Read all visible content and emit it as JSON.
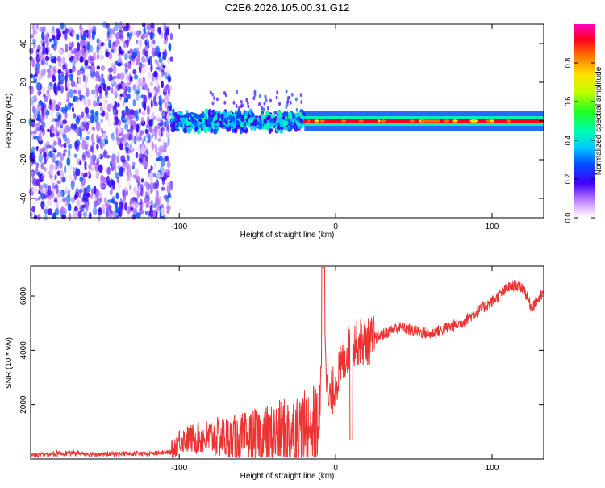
{
  "title": "C2E6.2026.105.00.31.G12",
  "chart_data": [
    {
      "type": "heatmap",
      "xlabel": "Height of straight line (km)",
      "ylabel": "Frequency (Hz)",
      "xlim": [
        -195,
        133
      ],
      "ylim": [
        -50,
        50
      ],
      "xticks": [
        "-100",
        "0",
        "100"
      ],
      "yticks": [
        "-40",
        "-20",
        "0",
        "20",
        "40"
      ],
      "colorbar": {
        "label": "Normalized spectral amplitude",
        "ticks": [
          "0.0",
          "0.2",
          "0.4",
          "0.6",
          "0.8"
        ],
        "range": [
          0,
          1
        ]
      },
      "regions": [
        {
          "x": [
            -195,
            -105
          ],
          "freq": [
            -50,
            50
          ],
          "amplitude": [
            0.0,
            0.1
          ]
        },
        {
          "x": [
            -105,
            -20
          ],
          "freq": [
            -8,
            8
          ],
          "amplitude": [
            0.05,
            0.4
          ]
        },
        {
          "x": [
            -20,
            133
          ],
          "freq": [
            -2,
            2
          ],
          "amplitude": [
            0.6,
            1.0
          ]
        }
      ]
    },
    {
      "type": "line",
      "xlabel": "Height of straight line (km)",
      "ylabel": "SNR (10 * v/v)",
      "xlim": [
        -195,
        133
      ],
      "ylim": [
        0,
        7100
      ],
      "xticks": [
        "-100",
        "0",
        "100"
      ],
      "yticks": [
        "2000",
        "4000",
        "6000"
      ],
      "color": "#ee3333",
      "x": [
        -195,
        -170,
        -150,
        -120,
        -105,
        -100,
        -80,
        -60,
        -40,
        -20,
        -10,
        -8,
        -5,
        0,
        5,
        10,
        20,
        40,
        60,
        70,
        80,
        100,
        110,
        115,
        120,
        125,
        133
      ],
      "y": [
        150,
        220,
        180,
        200,
        250,
        700,
        800,
        750,
        900,
        1100,
        1400,
        7050,
        2000,
        2800,
        3600,
        4300,
        4300,
        4850,
        4600,
        4800,
        5000,
        5800,
        6300,
        6400,
        6300,
        5600,
        6100
      ]
    }
  ]
}
